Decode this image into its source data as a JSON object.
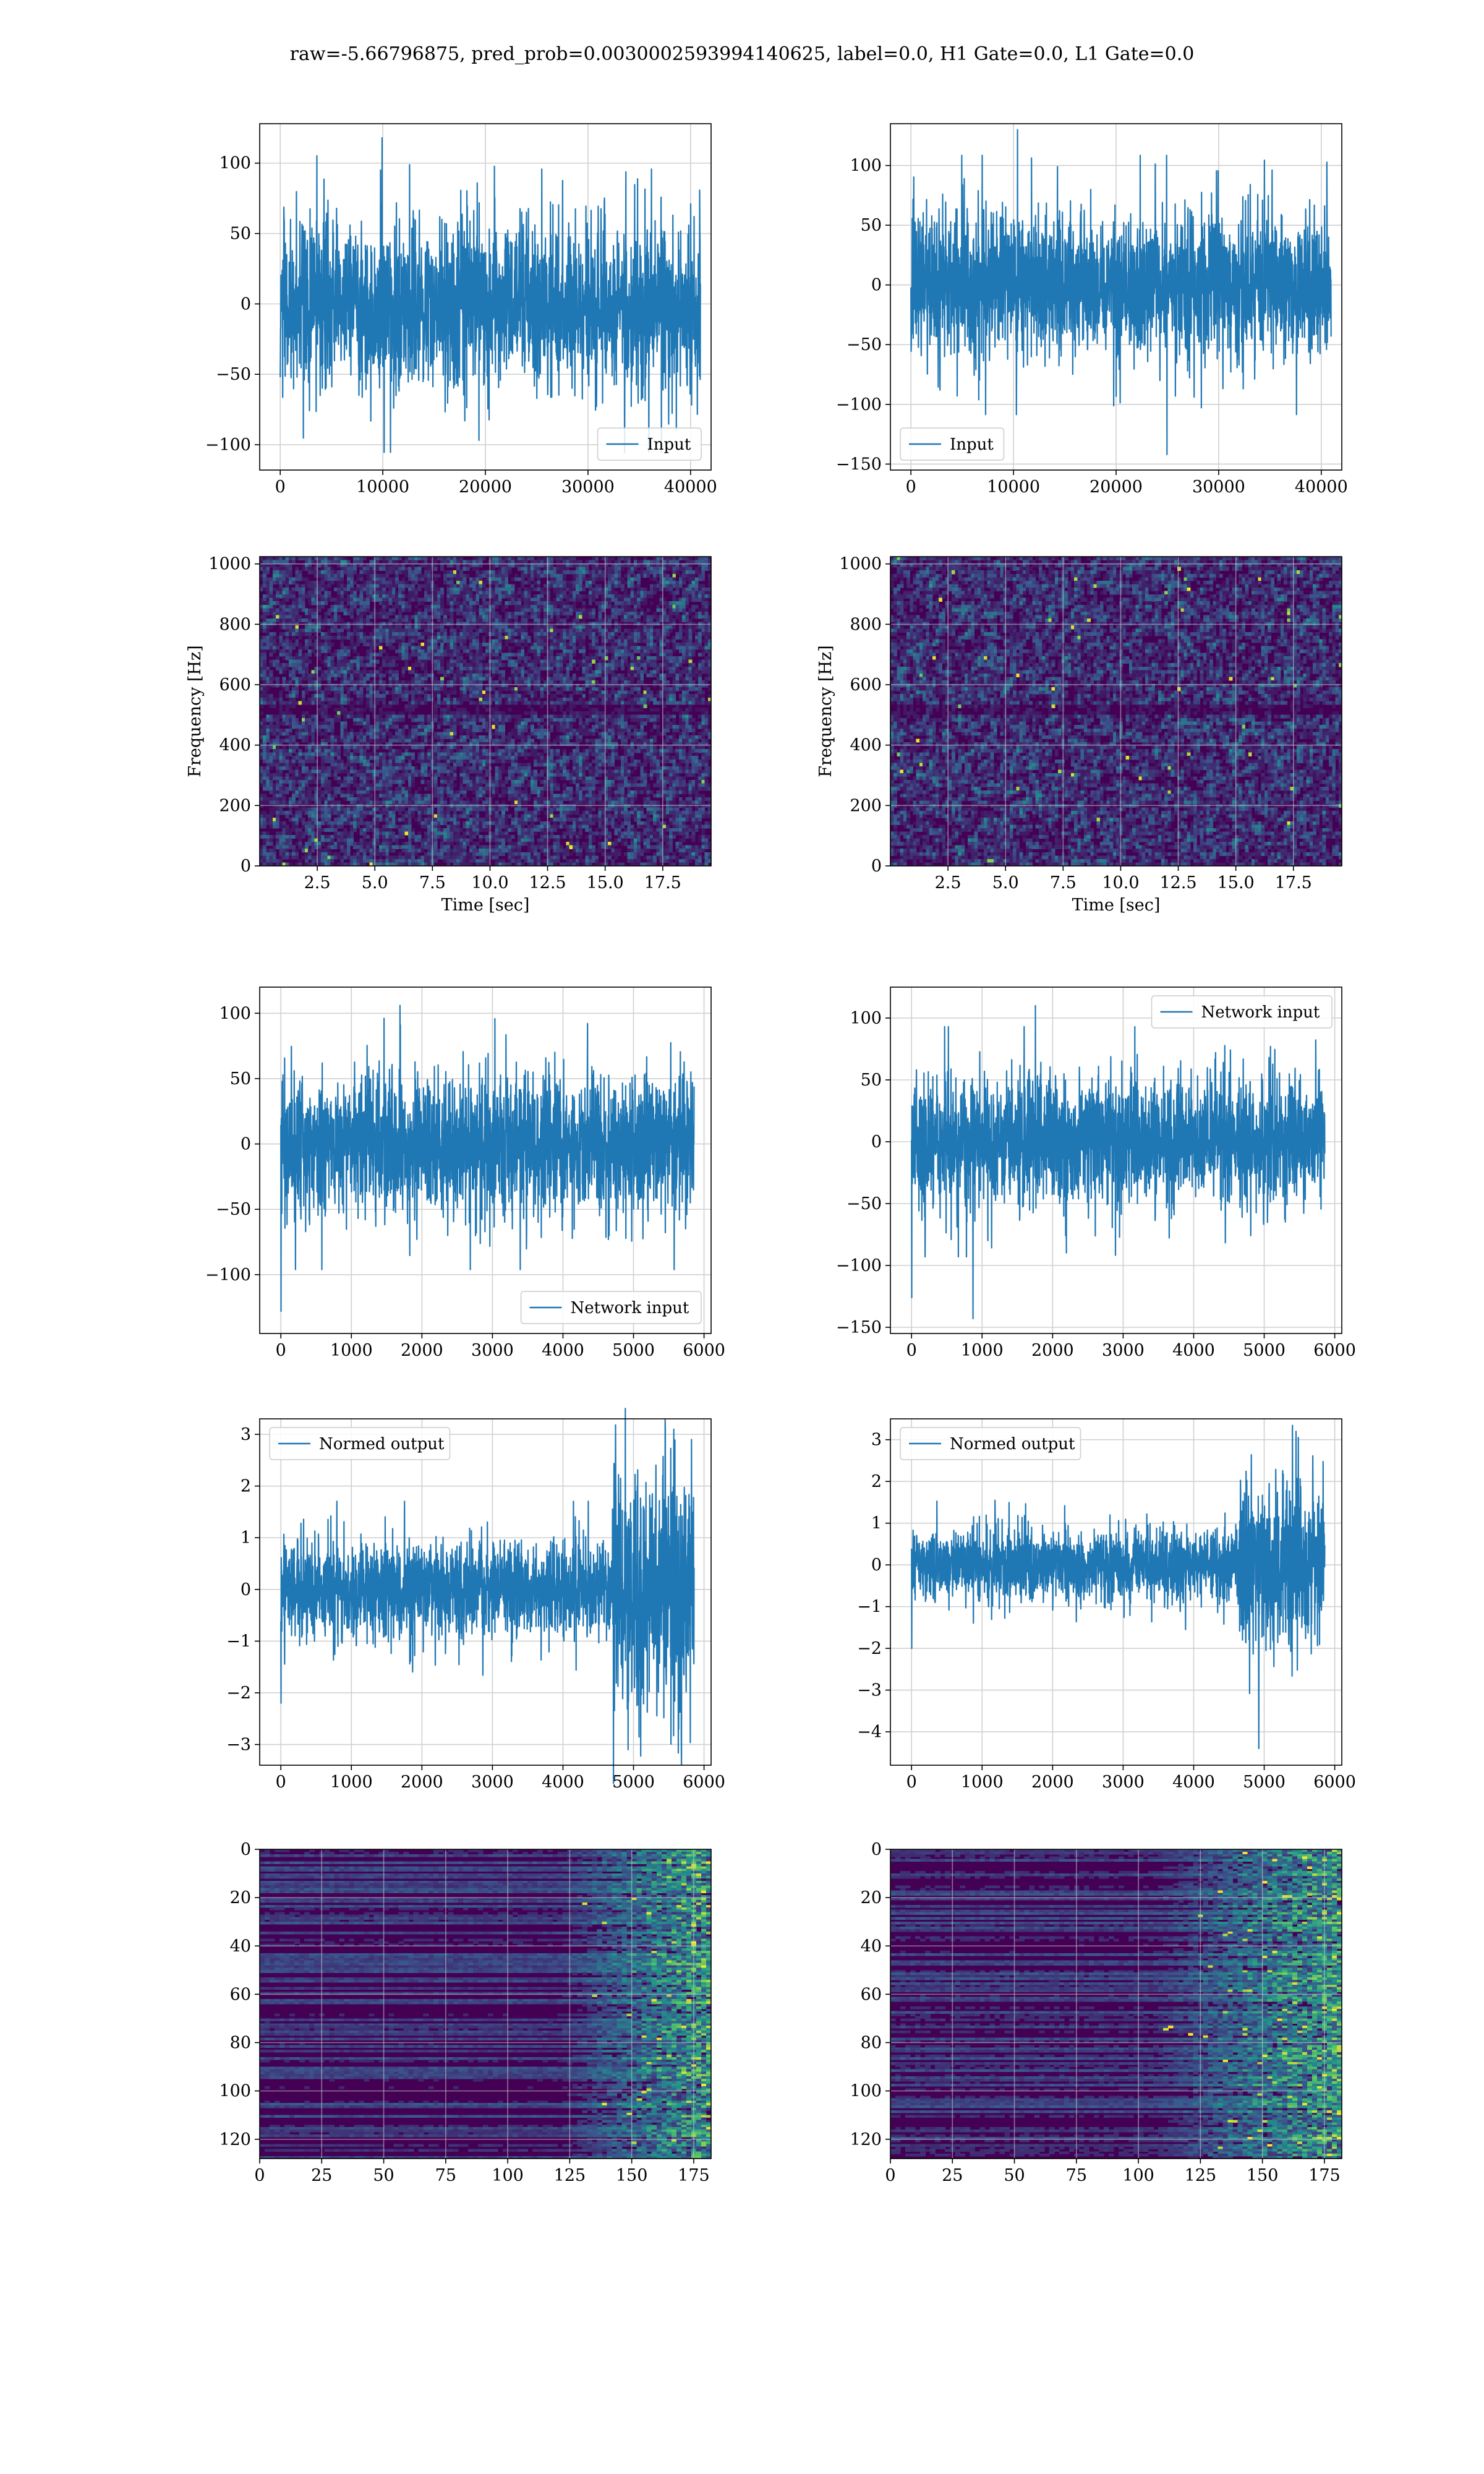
{
  "figure": {
    "title": "raw=-5.66796875, pred_prob=0.0030002593994140625, label=0.0, H1 Gate=0.0, L1 Gate=0.0"
  },
  "colors": {
    "series": "#1f77b4",
    "grid": "#d0d0d0",
    "viridis": [
      "#440154",
      "#3b528b",
      "#21918c",
      "#5ec962",
      "#fde725"
    ]
  },
  "chart_data": [
    {
      "id": "input-h1",
      "type": "line",
      "signal": "noise",
      "title": "",
      "xlabel": "",
      "ylabel": "",
      "xlim": [
        -2000,
        42000
      ],
      "ylim": [
        -118,
        128
      ],
      "xticks": [
        0,
        10000,
        20000,
        30000,
        40000
      ],
      "xtick_labels": [
        "0",
        "10000",
        "20000",
        "30000",
        "40000"
      ],
      "yticks": [
        -100,
        -50,
        0,
        50,
        100
      ],
      "ytick_labels": [
        "−100",
        "−50",
        "0",
        "50",
        "100"
      ],
      "x_range": [
        0,
        40960
      ],
      "envelope": 68,
      "peak": 118,
      "grid": true,
      "legend": {
        "label": "Input",
        "loc": "lower-right"
      }
    },
    {
      "id": "input-l1",
      "type": "line",
      "signal": "noise",
      "title": "",
      "xlabel": "",
      "ylabel": "",
      "xlim": [
        -2000,
        42000
      ],
      "ylim": [
        -155,
        135
      ],
      "xticks": [
        0,
        10000,
        20000,
        30000,
        40000
      ],
      "xtick_labels": [
        "0",
        "10000",
        "20000",
        "30000",
        "40000"
      ],
      "yticks": [
        -150,
        -100,
        -50,
        0,
        50,
        100
      ],
      "ytick_labels": [
        "−150",
        "−100",
        "−50",
        "0",
        "50",
        "100"
      ],
      "x_range": [
        0,
        40960
      ],
      "envelope": 70,
      "peak": 130,
      "min": -142,
      "grid": true,
      "legend": {
        "label": "Input",
        "loc": "lower-left"
      }
    },
    {
      "id": "spectrogram-h1",
      "type": "heatmap",
      "pattern": "spectrogram",
      "title": "",
      "xlabel": "Time [sec]",
      "ylabel": "Frequency [Hz]",
      "xlim": [
        0,
        19.6
      ],
      "ylim": [
        0,
        1024
      ],
      "xticks": [
        2.5,
        5.0,
        7.5,
        10.0,
        12.5,
        15.0,
        17.5
      ],
      "xtick_labels": [
        "2.5",
        "5.0",
        "7.5",
        "10.0",
        "12.5",
        "15.0",
        "17.5"
      ],
      "yticks": [
        0,
        200,
        400,
        600,
        800,
        1000
      ],
      "ytick_labels": [
        "0",
        "200",
        "400",
        "600",
        "800",
        "1000"
      ],
      "grid": true,
      "cols": 140,
      "rows": 90,
      "seed": 11
    },
    {
      "id": "spectrogram-l1",
      "type": "heatmap",
      "pattern": "spectrogram",
      "title": "",
      "xlabel": "Time [sec]",
      "ylabel": "Frequency [Hz]",
      "xlim": [
        0,
        19.6
      ],
      "ylim": [
        0,
        1024
      ],
      "xticks": [
        2.5,
        5.0,
        7.5,
        10.0,
        12.5,
        15.0,
        17.5
      ],
      "xtick_labels": [
        "2.5",
        "5.0",
        "7.5",
        "10.0",
        "12.5",
        "15.0",
        "17.5"
      ],
      "yticks": [
        0,
        200,
        400,
        600,
        800,
        1000
      ],
      "ytick_labels": [
        "0",
        "200",
        "400",
        "600",
        "800",
        "1000"
      ],
      "grid": true,
      "cols": 140,
      "rows": 90,
      "seed": 23
    },
    {
      "id": "network-input-h1",
      "type": "line",
      "signal": "noise",
      "title": "",
      "xlabel": "",
      "ylabel": "",
      "xlim": [
        -300,
        6100
      ],
      "ylim": [
        -145,
        120
      ],
      "xticks": [
        0,
        1000,
        2000,
        3000,
        4000,
        5000,
        6000
      ],
      "xtick_labels": [
        "0",
        "1000",
        "2000",
        "3000",
        "4000",
        "5000",
        "6000"
      ],
      "yticks": [
        -100,
        -50,
        0,
        50,
        100
      ],
      "ytick_labels": [
        "−100",
        "−50",
        "0",
        "50",
        "100"
      ],
      "x_range": [
        0,
        5859
      ],
      "envelope": 62,
      "peak": 106,
      "start_spike": -128,
      "grid": true,
      "legend": {
        "label": "Network input",
        "loc": "lower-right"
      }
    },
    {
      "id": "network-input-l1",
      "type": "line",
      "signal": "noise",
      "title": "",
      "xlabel": "",
      "ylabel": "",
      "xlim": [
        -300,
        6100
      ],
      "ylim": [
        -155,
        125
      ],
      "xticks": [
        0,
        1000,
        2000,
        3000,
        4000,
        5000,
        6000
      ],
      "xtick_labels": [
        "0",
        "1000",
        "2000",
        "3000",
        "4000",
        "5000",
        "6000"
      ],
      "yticks": [
        -150,
        -100,
        -50,
        0,
        50,
        100
      ],
      "ytick_labels": [
        "−150",
        "−100",
        "−50",
        "0",
        "50",
        "100"
      ],
      "x_range": [
        0,
        5859
      ],
      "envelope": 60,
      "peak": 110,
      "start_spike": -126,
      "min": -143,
      "grid": true,
      "legend": {
        "label": "Network input",
        "loc": "upper-right"
      }
    },
    {
      "id": "normed-output-h1",
      "type": "line",
      "signal": "noise-burst",
      "title": "",
      "xlabel": "",
      "ylabel": "",
      "xlim": [
        -300,
        6100
      ],
      "ylim": [
        -3.4,
        3.3
      ],
      "xticks": [
        0,
        1000,
        2000,
        3000,
        4000,
        5000,
        6000
      ],
      "xtick_labels": [
        "0",
        "1000",
        "2000",
        "3000",
        "4000",
        "5000",
        "6000"
      ],
      "yticks": [
        -3,
        -2,
        -1,
        0,
        1,
        2,
        3
      ],
      "ytick_labels": [
        "−3",
        "−2",
        "−1",
        "0",
        "1",
        "2",
        "3"
      ],
      "x_range": [
        0,
        5859
      ],
      "envelope": 1.1,
      "burst_start": 4700,
      "burst_envelope": 2.6,
      "peak": 3.1,
      "start_spike": -2.2,
      "min": -3.1,
      "grid": true,
      "legend": {
        "label": "Normed output",
        "loc": "upper-left"
      }
    },
    {
      "id": "normed-output-l1",
      "type": "line",
      "signal": "noise-burst",
      "title": "",
      "xlabel": "",
      "ylabel": "",
      "xlim": [
        -300,
        6100
      ],
      "ylim": [
        -4.8,
        3.5
      ],
      "xticks": [
        0,
        1000,
        2000,
        3000,
        4000,
        5000,
        6000
      ],
      "xtick_labels": [
        "0",
        "1000",
        "2000",
        "3000",
        "4000",
        "5000",
        "6000"
      ],
      "yticks": [
        -4,
        -3,
        -2,
        -1,
        0,
        1,
        2,
        3
      ],
      "ytick_labels": [
        "−4",
        "−3",
        "−2",
        "−1",
        "0",
        "1",
        "2",
        "3"
      ],
      "x_range": [
        0,
        5859
      ],
      "envelope": 1.0,
      "burst_start": 4650,
      "burst_envelope": 2.4,
      "peak": 3.2,
      "start_spike": -2.0,
      "min": -4.4,
      "grid": true,
      "legend": {
        "label": "Normed output",
        "loc": "upper-left"
      }
    },
    {
      "id": "feature-map-h1",
      "type": "heatmap",
      "pattern": "featuremap",
      "title": "",
      "xlabel": "",
      "ylabel": "",
      "xlim": [
        0,
        182
      ],
      "ylim": [
        128,
        0
      ],
      "xticks": [
        0,
        25,
        50,
        75,
        100,
        125,
        150,
        175
      ],
      "xtick_labels": [
        "0",
        "25",
        "50",
        "75",
        "100",
        "125",
        "150",
        "175"
      ],
      "yticks": [
        0,
        20,
        40,
        60,
        80,
        100,
        120
      ],
      "ytick_labels": [
        "0",
        "20",
        "40",
        "60",
        "80",
        "100",
        "120"
      ],
      "grid": true,
      "cols": 182,
      "rows": 128,
      "activation_start": 140,
      "seed": 5
    },
    {
      "id": "feature-map-l1",
      "type": "heatmap",
      "pattern": "featuremap",
      "title": "",
      "xlabel": "",
      "ylabel": "",
      "xlim": [
        0,
        182
      ],
      "ylim": [
        128,
        0
      ],
      "xticks": [
        0,
        25,
        50,
        75,
        100,
        125,
        150,
        175
      ],
      "xtick_labels": [
        "0",
        "25",
        "50",
        "75",
        "100",
        "125",
        "150",
        "175"
      ],
      "yticks": [
        0,
        20,
        40,
        60,
        80,
        100,
        120
      ],
      "ytick_labels": [
        "0",
        "20",
        "40",
        "60",
        "80",
        "100",
        "120"
      ],
      "grid": true,
      "cols": 182,
      "rows": 128,
      "activation_start": 125,
      "seed": 9
    }
  ]
}
